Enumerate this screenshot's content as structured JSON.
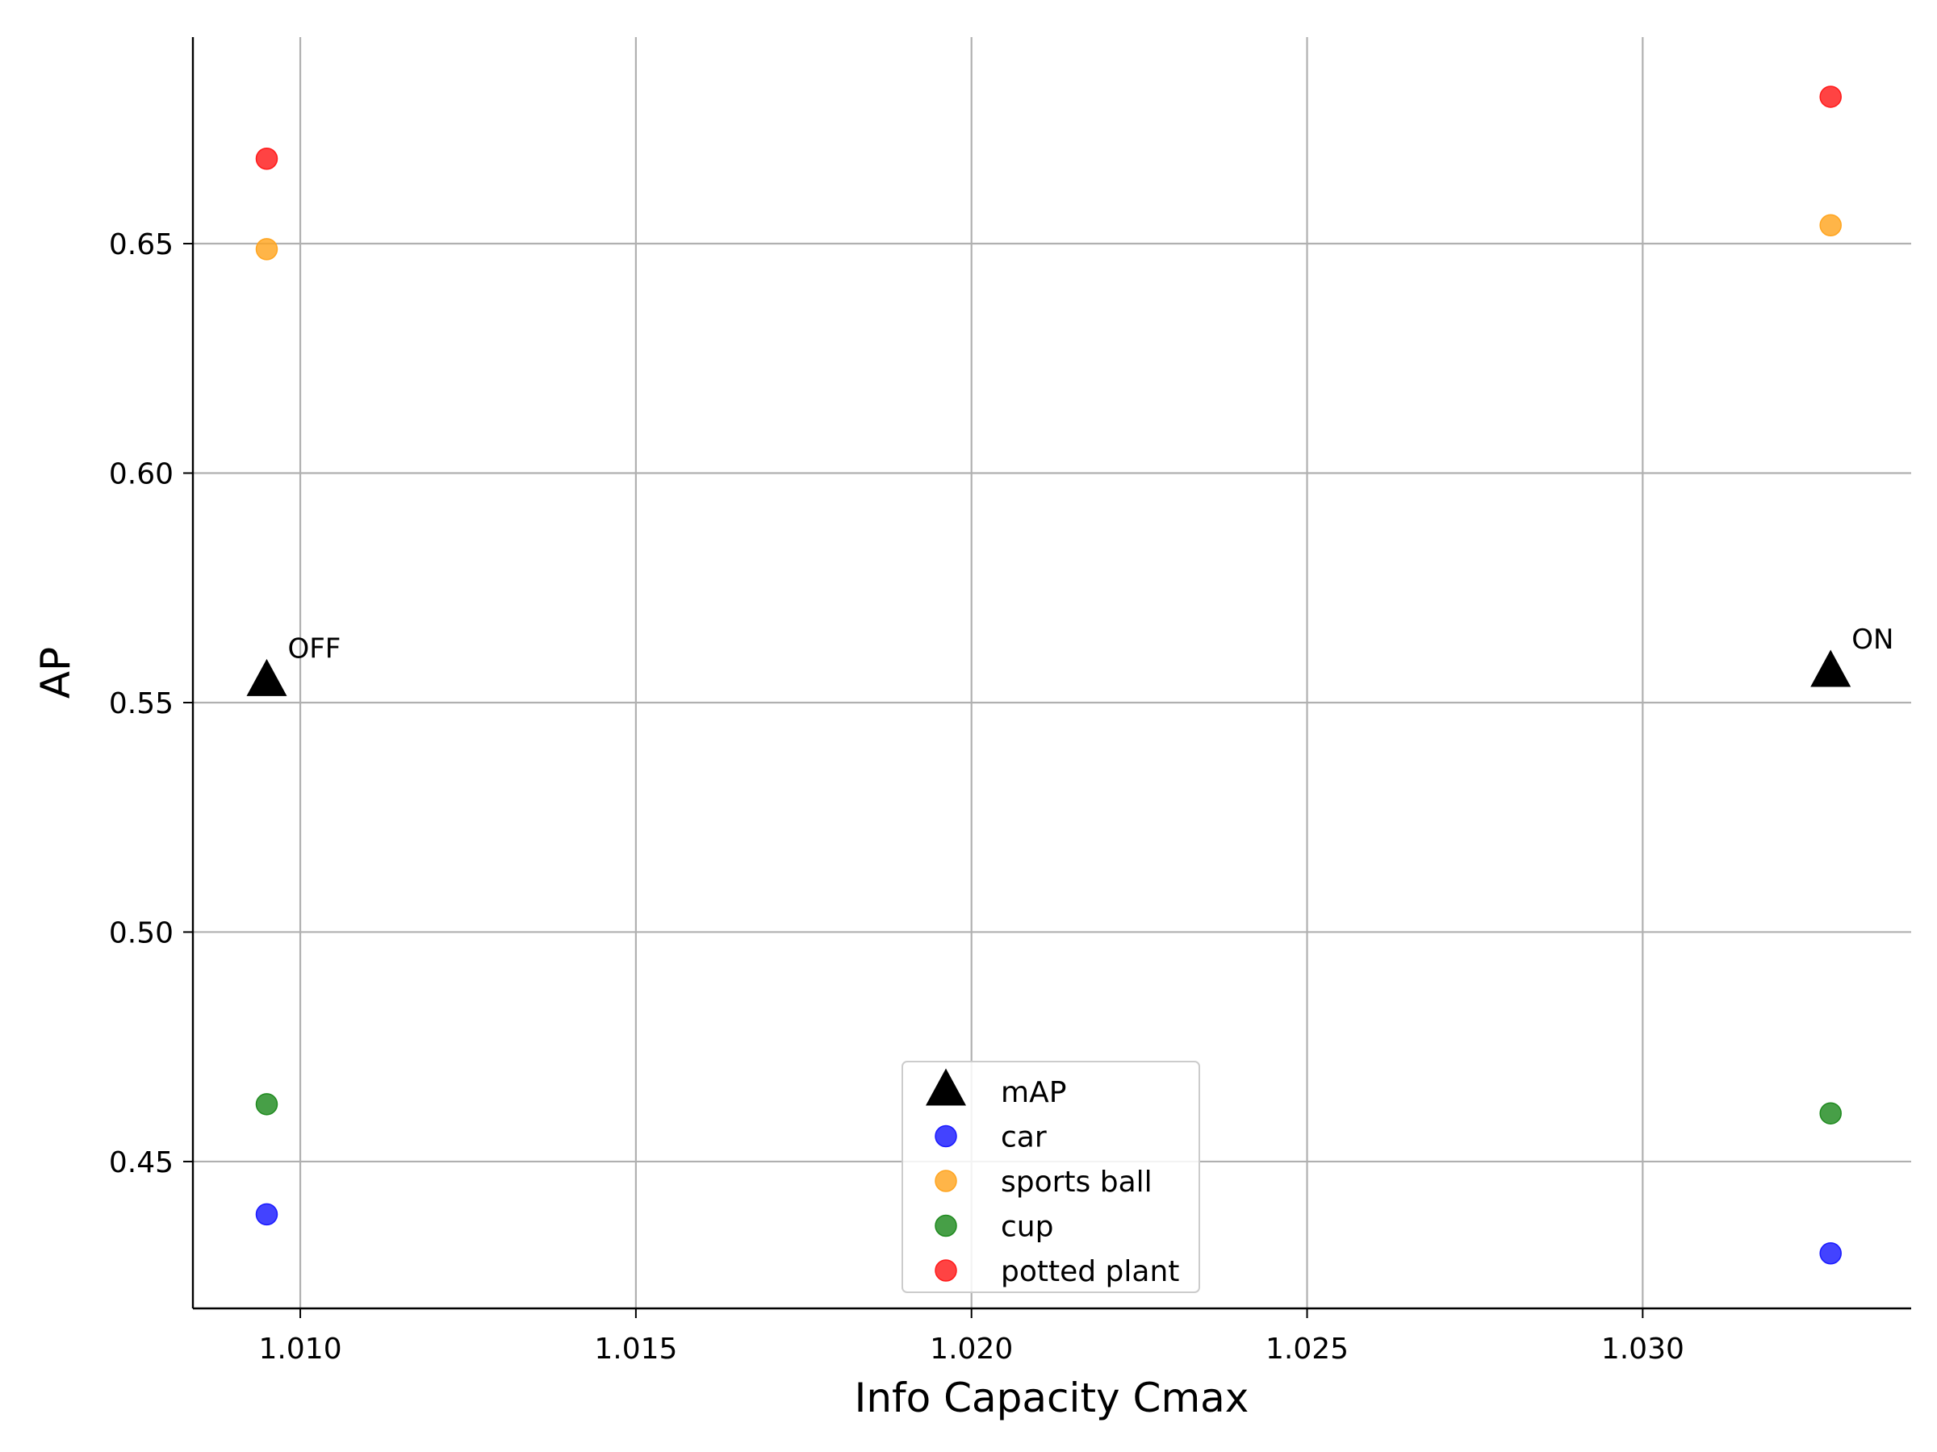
{
  "chart_data": {
    "type": "scatter",
    "title": "",
    "xlabel": "Info Capacity Cmax",
    "ylabel": "AP",
    "xlim": [
      1.0084,
      1.034
    ],
    "ylim": [
      0.418,
      0.695
    ],
    "xticks": [
      1.01,
      1.015,
      1.02,
      1.025,
      1.03
    ],
    "xtick_labels": [
      "1.010",
      "1.015",
      "1.020",
      "1.025",
      "1.030"
    ],
    "yticks": [
      0.45,
      0.5,
      0.55,
      0.6,
      0.65
    ],
    "ytick_labels": [
      "0.45",
      "0.50",
      "0.55",
      "0.60",
      "0.65"
    ],
    "grid": true,
    "legend_position": "lower-center",
    "series": [
      {
        "name": "mAP",
        "marker": "triangle",
        "color": "#000000",
        "points": [
          {
            "x": 1.0095,
            "y": 0.5545
          },
          {
            "x": 1.0328,
            "y": 0.5565
          }
        ]
      },
      {
        "name": "car",
        "marker": "circle",
        "color": "#1a1aff",
        "points": [
          {
            "x": 1.0095,
            "y": 0.4385
          },
          {
            "x": 1.0328,
            "y": 0.43
          }
        ]
      },
      {
        "name": "sports ball",
        "marker": "circle",
        "color": "#ffa520",
        "points": [
          {
            "x": 1.0095,
            "y": 0.6488
          },
          {
            "x": 1.0328,
            "y": 0.654
          }
        ]
      },
      {
        "name": "cup",
        "marker": "circle",
        "color": "#1f8a1f",
        "points": [
          {
            "x": 1.0095,
            "y": 0.4625
          },
          {
            "x": 1.0328,
            "y": 0.4605
          }
        ]
      },
      {
        "name": "potted plant",
        "marker": "circle",
        "color": "#ff1a1a",
        "points": [
          {
            "x": 1.0095,
            "y": 0.6685
          },
          {
            "x": 1.0328,
            "y": 0.682
          }
        ]
      }
    ],
    "annotations": [
      {
        "text": "OFF",
        "x": 1.0095,
        "y": 0.5545
      },
      {
        "text": "ON",
        "x": 1.0328,
        "y": 0.5565
      }
    ]
  }
}
